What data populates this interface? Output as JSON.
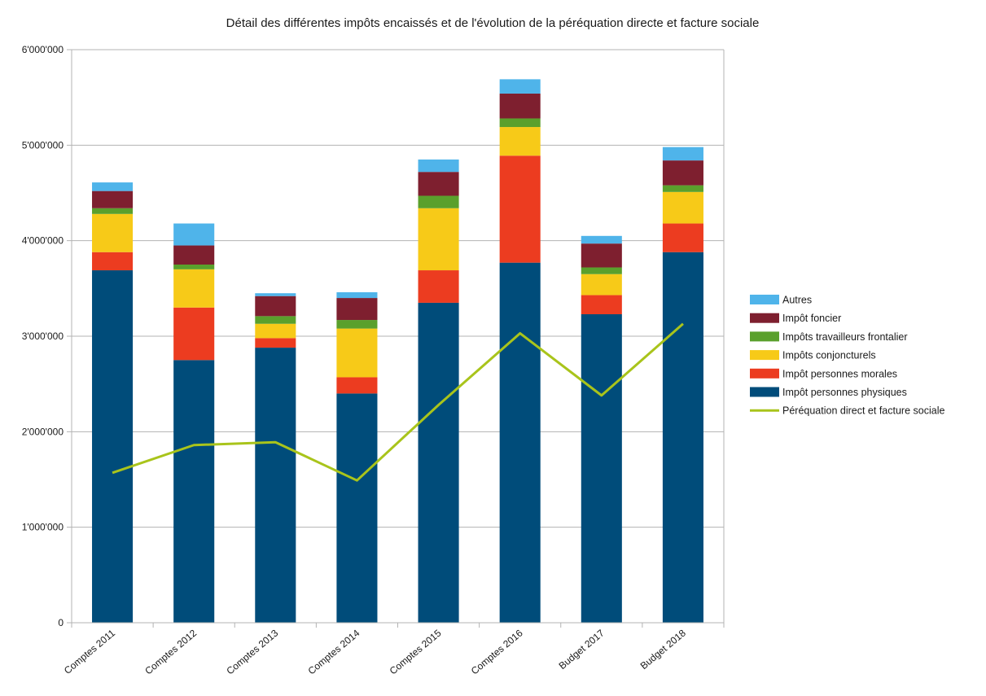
{
  "chart_data": {
    "type": "bar",
    "stacked": true,
    "title": "Détail des différentes impôts encaissés et de l'évolution de la péréquation directe et facture sociale",
    "xlabel": "",
    "ylabel": "",
    "ylim": [
      0,
      6000000
    ],
    "yticks": [
      0,
      1000000,
      2000000,
      3000000,
      4000000,
      5000000,
      6000000
    ],
    "ytick_labels": [
      "0",
      "1'000'000",
      "2'000'000",
      "3'000'000",
      "4'000'000",
      "5'000'000",
      "6'000'000"
    ],
    "grid": true,
    "legend_position": "right",
    "categories": [
      "Comptes 2011",
      "Comptes 2012",
      "Comptes 2013",
      "Comptes 2014",
      "Comptes 2015",
      "Comptes 2016",
      "Budget 2017",
      "Budget 2018"
    ],
    "series": [
      {
        "name": "Impôt personnes physiques",
        "type": "bar",
        "color": "#004c7a",
        "values": [
          3690000,
          2750000,
          2880000,
          2400000,
          3350000,
          3770000,
          3230000,
          3880000
        ]
      },
      {
        "name": "Impôt personnes morales",
        "type": "bar",
        "color": "#ec3c20",
        "values": [
          190000,
          550000,
          100000,
          170000,
          340000,
          1120000,
          200000,
          300000
        ]
      },
      {
        "name": "Impôts conjoncturels",
        "type": "bar",
        "color": "#f7ca18",
        "values": [
          400000,
          400000,
          150000,
          510000,
          650000,
          300000,
          220000,
          330000
        ]
      },
      {
        "name": "Impôts travailleurs frontalier",
        "type": "bar",
        "color": "#5aa02c",
        "values": [
          60000,
          50000,
          80000,
          90000,
          130000,
          90000,
          70000,
          70000
        ]
      },
      {
        "name": "Impôt foncier",
        "type": "bar",
        "color": "#7e1f2f",
        "values": [
          180000,
          200000,
          210000,
          230000,
          250000,
          260000,
          250000,
          260000
        ]
      },
      {
        "name": "Autres",
        "type": "bar",
        "color": "#4fb4ea",
        "values": [
          90000,
          230000,
          30000,
          60000,
          130000,
          150000,
          80000,
          140000
        ]
      },
      {
        "name": "Péréquation direct et facture sociale",
        "type": "line",
        "color": "#a9c41b",
        "values": [
          1570000,
          1860000,
          1890000,
          1490000,
          2280000,
          3030000,
          2380000,
          3130000
        ]
      }
    ]
  }
}
